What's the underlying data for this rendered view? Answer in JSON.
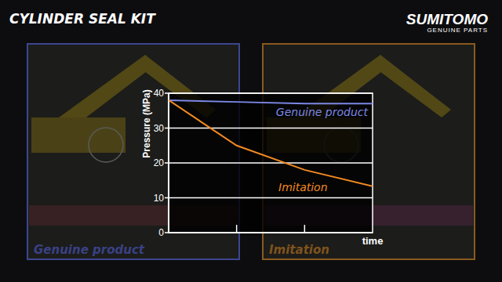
{
  "chart_data": {
    "type": "line",
    "title": "CYLINDER SEAL KIT",
    "brand": "SUMITOMO",
    "brand_subtitle": "GENUINE PARTS",
    "x_label": "time",
    "y_label": "Pressure (MPa)",
    "x": [
      0,
      1,
      2,
      3
    ],
    "series": [
      {
        "name": "Genuine product",
        "color": "#7d88e6",
        "values": [
          38,
          37.5,
          37,
          37
        ]
      },
      {
        "name": "Imitation",
        "color": "#f28a22",
        "values": [
          38,
          25,
          18,
          13.3
        ]
      }
    ],
    "xlim": [
      0,
      3
    ],
    "xticks": [
      1,
      2
    ],
    "ylim": [
      0,
      40
    ],
    "yticks": [
      0,
      10,
      20,
      30,
      40
    ],
    "grid": true,
    "tick_labels": "y",
    "annotations": [
      "Genuine product",
      "Imitation"
    ]
  }
}
